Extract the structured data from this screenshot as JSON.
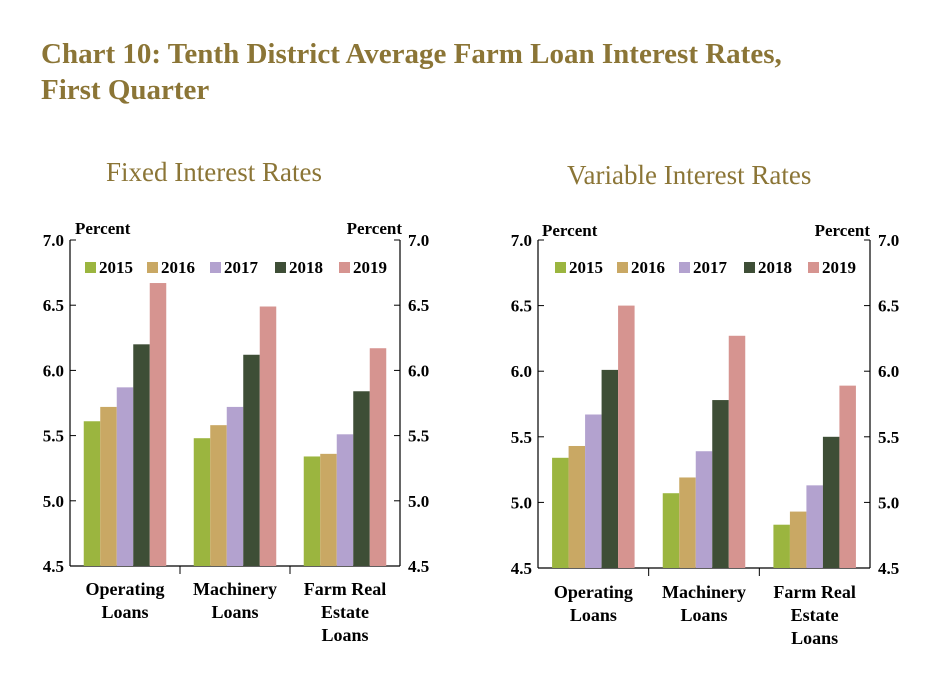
{
  "page": {
    "title_line1": "Chart 10: Tenth District Average Farm Loan Interest Rates,",
    "title_line2": "First Quarter"
  },
  "colors": {
    "title": "#8B7536",
    "series": [
      "#9BB53F",
      "#C9A864",
      "#B3A2CF",
      "#3E4E36",
      "#D69490"
    ],
    "axis": "#000000"
  },
  "chart_data": [
    {
      "type": "bar",
      "title": "Fixed Interest Rates",
      "ylabel_left": "Percent",
      "ylabel_right": "Percent",
      "ylim": [
        4.5,
        7.0
      ],
      "yticks": [
        "4.5",
        "5.0",
        "5.5",
        "6.0",
        "6.5",
        "7.0"
      ],
      "categories": [
        [
          "Operating",
          "Loans"
        ],
        [
          "Machinery",
          "Loans"
        ],
        [
          "Farm Real",
          "Estate",
          "Loans"
        ]
      ],
      "legend_position": "top",
      "series": [
        {
          "name": "2015",
          "values": [
            5.61,
            5.48,
            5.34
          ]
        },
        {
          "name": "2016",
          "values": [
            5.72,
            5.58,
            5.36
          ]
        },
        {
          "name": "2017",
          "values": [
            5.87,
            5.72,
            5.51
          ]
        },
        {
          "name": "2018",
          "values": [
            6.2,
            6.12,
            5.84
          ]
        },
        {
          "name": "2019",
          "values": [
            6.67,
            6.49,
            6.17
          ]
        }
      ]
    },
    {
      "type": "bar",
      "title": "Variable Interest Rates",
      "ylabel_left": "Percent",
      "ylabel_right": "Percent",
      "ylim": [
        4.5,
        7.0
      ],
      "yticks": [
        "4.5",
        "5.0",
        "5.5",
        "6.0",
        "6.5",
        "7.0"
      ],
      "categories": [
        [
          "Operating",
          "Loans"
        ],
        [
          "Machinery",
          "Loans"
        ],
        [
          "Farm Real",
          "Estate",
          "Loans"
        ]
      ],
      "legend_position": "top",
      "series": [
        {
          "name": "2015",
          "values": [
            5.34,
            5.07,
            4.83
          ]
        },
        {
          "name": "2016",
          "values": [
            5.43,
            5.19,
            4.93
          ]
        },
        {
          "name": "2017",
          "values": [
            5.67,
            5.39,
            5.13
          ]
        },
        {
          "name": "2018",
          "values": [
            6.01,
            5.78,
            5.5
          ]
        },
        {
          "name": "2019",
          "values": [
            6.5,
            6.27,
            5.89
          ]
        }
      ]
    }
  ]
}
